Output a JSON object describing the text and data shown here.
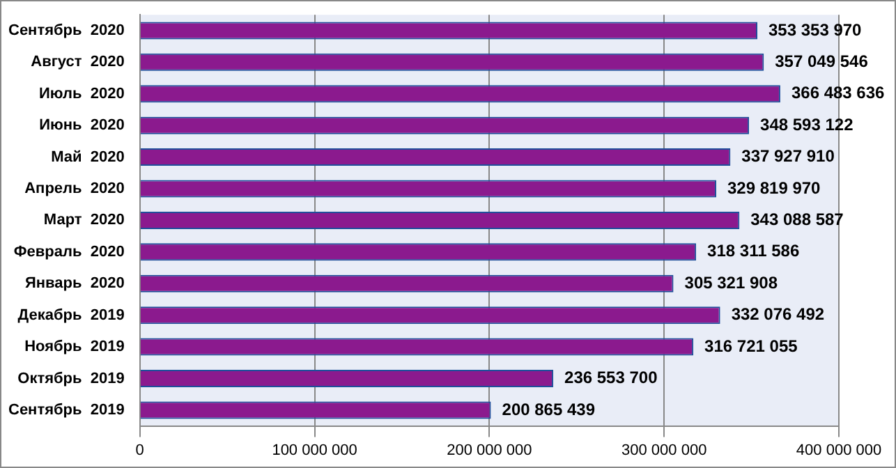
{
  "chart_data": {
    "type": "bar",
    "orientation": "horizontal",
    "categories": [
      "Сентябрь  2020",
      "Август  2020",
      "Июль  2020",
      "Июнь  2020",
      "Май  2020",
      "Апрель  2020",
      "Март  2020",
      "Февраль  2020",
      "Январь  2020",
      "Декабрь  2019",
      "Ноябрь  2019",
      "Октябрь  2019",
      "Сентябрь  2019"
    ],
    "values": [
      353353970,
      357049546,
      366483636,
      348593122,
      337927910,
      329819970,
      343088587,
      318311586,
      305321908,
      332076492,
      316721055,
      236553700,
      200865439
    ],
    "value_labels": [
      "353 353 970",
      "357 049 546",
      "366 483 636",
      "348 593 122",
      "337 927 910",
      "329 819 970",
      "343 088 587",
      "318 311 586",
      "305 321 908",
      "332 076 492",
      "316 721 055",
      "236 553 700",
      "200 865 439"
    ],
    "color": "#8b1a8e",
    "xlim": [
      0,
      400000000
    ],
    "xticks": [
      0,
      {
        "value": 100000000,
        "label": "100 000 000"
      },
      {
        "value": 200000000,
        "label": "200 000 000"
      },
      {
        "value": 300000000,
        "label": "300 000 000"
      },
      {
        "value": 400000000,
        "label": "400 000 000"
      }
    ],
    "grid": "x",
    "legend": false
  }
}
